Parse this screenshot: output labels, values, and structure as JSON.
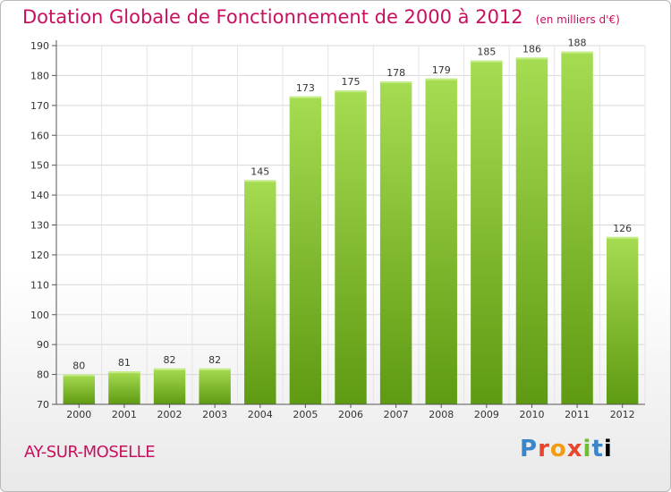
{
  "header": {
    "title": "Dotation Globale de Fonctionnement de 2000 à 2012",
    "unit": "(en milliers d'€)"
  },
  "footer": {
    "commune": "AY-SUR-MOSELLE",
    "logo_text": "Proxiti"
  },
  "colors": {
    "title": "#c8105f",
    "bar_light": "#a6dc52",
    "bar_dark": "#5e9a12"
  },
  "chart_data": {
    "type": "bar",
    "title": "Dotation Globale de Fonctionnement de 2000 à 2012",
    "subtitle": "(en milliers d'€)",
    "categories": [
      "2000",
      "2001",
      "2002",
      "2003",
      "2004",
      "2005",
      "2006",
      "2007",
      "2008",
      "2009",
      "2010",
      "2011",
      "2012"
    ],
    "values": [
      80,
      81,
      82,
      82,
      145,
      173,
      175,
      178,
      179,
      185,
      186,
      188,
      126
    ],
    "ylim": [
      70,
      190
    ],
    "yticks": [
      70,
      80,
      90,
      100,
      110,
      120,
      130,
      140,
      150,
      160,
      170,
      180,
      190
    ],
    "grid": true
  }
}
